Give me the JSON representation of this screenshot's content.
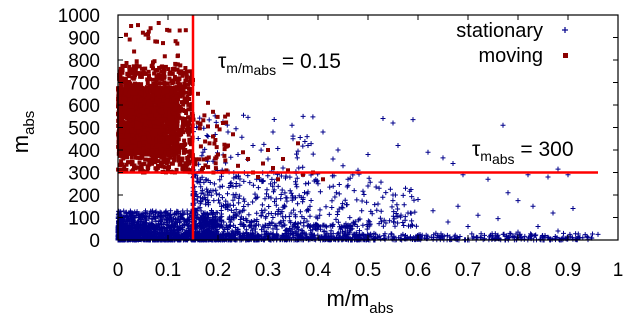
{
  "chart_data": {
    "type": "scatter",
    "title": "",
    "xlabel": {
      "main": "m/m",
      "sub": "abs"
    },
    "ylabel": {
      "main": "m",
      "sub": "abs"
    },
    "xlim": [
      0,
      1
    ],
    "ylim": [
      0,
      1000
    ],
    "x_ticks": [
      "0",
      "0.1",
      "0.2",
      "0.3",
      "0.4",
      "0.5",
      "0.6",
      "0.7",
      "0.8",
      "0.9",
      "1"
    ],
    "y_ticks": [
      "0",
      "100",
      "200",
      "300",
      "400",
      "500",
      "600",
      "700",
      "800",
      "900",
      "1000"
    ],
    "grid": false,
    "legend_position": "top-right",
    "series": [
      {
        "name": "stationary",
        "color": "#00008b",
        "marker": "plus",
        "clusters": [
          {
            "x_range": [
              0.0,
              0.2
            ],
            "y_range": [
              0,
              130
            ],
            "count": 1100
          },
          {
            "x_range": [
              0.0,
              0.5
            ],
            "y_range": [
              0,
              70
            ],
            "count": 700
          },
          {
            "x_range": [
              0.15,
              0.95
            ],
            "y_range": [
              0,
              30
            ],
            "count": 600
          },
          {
            "x_range": [
              0.15,
              0.6
            ],
            "y_range": [
              60,
              300
            ],
            "count": 420
          },
          {
            "x_range": [
              0.15,
              0.4
            ],
            "y_range": [
              100,
              560
            ],
            "count": 140
          }
        ],
        "points": [
          [
            0.96,
            25
          ],
          [
            0.92,
            15
          ],
          [
            0.88,
            40
          ],
          [
            0.84,
            60
          ],
          [
            0.8,
            35
          ],
          [
            0.76,
            95
          ],
          [
            0.72,
            110
          ],
          [
            0.7,
            60
          ],
          [
            0.68,
            150
          ],
          [
            0.66,
            80
          ],
          [
            0.63,
            130
          ],
          [
            0.6,
            180
          ],
          [
            0.58,
            120
          ],
          [
            0.55,
            200
          ],
          [
            0.52,
            160
          ],
          [
            0.5,
            240
          ],
          [
            0.48,
            310
          ],
          [
            0.46,
            270
          ],
          [
            0.45,
            330
          ],
          [
            0.43,
            360
          ],
          [
            0.4,
            250
          ],
          [
            0.38,
            420
          ],
          [
            0.37,
            290
          ],
          [
            0.35,
            450
          ],
          [
            0.33,
            320
          ],
          [
            0.31,
            480
          ],
          [
            0.29,
            260
          ],
          [
            0.27,
            420
          ],
          [
            0.26,
            545
          ],
          [
            0.24,
            380
          ],
          [
            0.22,
            480
          ],
          [
            0.21,
            525
          ],
          [
            0.19,
            350
          ],
          [
            0.18,
            460
          ],
          [
            0.17,
            390
          ],
          [
            0.53,
            540
          ],
          [
            0.55,
            520
          ],
          [
            0.77,
            510
          ],
          [
            0.59,
            535
          ],
          [
            0.67,
            340
          ],
          [
            0.69,
            290
          ],
          [
            0.82,
            290
          ],
          [
            0.88,
            315
          ],
          [
            0.86,
            280
          ],
          [
            0.9,
            290
          ],
          [
            0.74,
            270
          ],
          [
            0.78,
            210
          ],
          [
            0.8,
            175
          ],
          [
            0.83,
            150
          ],
          [
            0.87,
            120
          ],
          [
            0.91,
            140
          ],
          [
            0.62,
            390
          ],
          [
            0.65,
            365
          ],
          [
            0.56,
            420
          ],
          [
            0.5,
            380
          ],
          [
            0.44,
            400
          ],
          [
            0.41,
            480
          ],
          [
            0.36,
            395
          ],
          [
            0.3,
            360
          ]
        ]
      },
      {
        "name": "moving",
        "color": "#8b0000",
        "marker": "square",
        "clusters": [
          {
            "x_range": [
              0.0,
              0.12
            ],
            "y_range": [
              380,
              680
            ],
            "count": 1600
          },
          {
            "x_range": [
              0.0,
              0.15
            ],
            "y_range": [
              300,
              780
            ],
            "count": 800
          },
          {
            "x_range": [
              0.05,
              0.22
            ],
            "y_range": [
              300,
              560
            ],
            "count": 120
          },
          {
            "x_range": [
              0.01,
              0.14
            ],
            "y_range": [
              780,
              970
            ],
            "count": 26
          }
        ],
        "points": [
          [
            0.04,
            955
          ],
          [
            0.06,
            915
          ],
          [
            0.09,
            875
          ],
          [
            0.12,
            820
          ],
          [
            0.07,
            790
          ],
          [
            0.11,
            760
          ],
          [
            0.14,
            690
          ],
          [
            0.16,
            650
          ],
          [
            0.18,
            610
          ],
          [
            0.19,
            570
          ],
          [
            0.21,
            520
          ],
          [
            0.23,
            470
          ],
          [
            0.22,
            420
          ],
          [
            0.2,
            380
          ],
          [
            0.24,
            330
          ],
          [
            0.26,
            360
          ],
          [
            0.27,
            300
          ],
          [
            0.28,
            280
          ],
          [
            0.29,
            340
          ],
          [
            0.3,
            400
          ],
          [
            0.31,
            320
          ],
          [
            0.33,
            360
          ],
          [
            0.34,
            310
          ],
          [
            0.36,
            430
          ],
          [
            0.37,
            290
          ],
          [
            0.41,
            270
          ],
          [
            0.39,
            300
          ],
          [
            0.32,
            270
          ],
          [
            0.01,
            390
          ],
          [
            0.02,
            345
          ],
          [
            0.03,
            310
          ],
          [
            0.08,
            330
          ],
          [
            0.05,
            300
          ],
          [
            0.1,
            305
          ],
          [
            0.13,
            330
          ],
          [
            0.15,
            360
          ],
          [
            0.17,
            320
          ],
          [
            0.25,
            390
          ],
          [
            0.19,
            460
          ],
          [
            0.18,
            505
          ]
        ]
      }
    ],
    "reference_lines": [
      {
        "orientation": "vertical",
        "value": 0.15,
        "color": "#ff0000"
      },
      {
        "orientation": "horizontal",
        "value": 300,
        "color": "#ff0000"
      }
    ],
    "annotations": [
      {
        "main": "τ",
        "sub": "m/m",
        "subsub": "abs",
        "rest": " = 0.15"
      },
      {
        "main": "τ",
        "sub": "m",
        "subsub": "abs",
        "rest": " = 300"
      }
    ]
  }
}
